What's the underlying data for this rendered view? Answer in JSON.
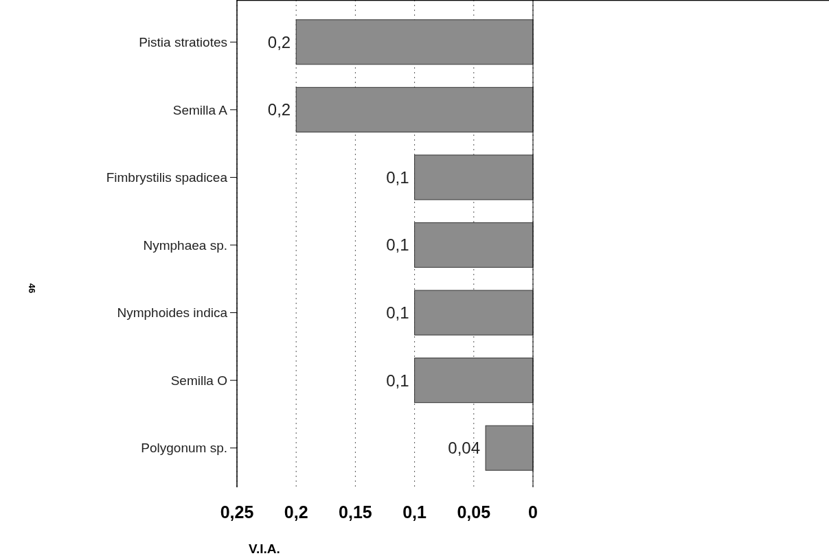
{
  "chart_data": {
    "type": "bar",
    "orientation": "horizontal",
    "xlabel": "V.I.A.",
    "categories": [
      "Pistia stratiotes",
      "Semilla A",
      "Fimbrystilis spadicea",
      "Nymphaea sp.",
      "Nymphoides indica",
      "Semilla O",
      "Polygonum sp."
    ],
    "values": [
      0.2,
      0.2,
      0.1,
      0.1,
      0.1,
      0.1,
      0.04
    ],
    "value_labels": [
      "0,2",
      "0,2",
      "0,1",
      "0,1",
      "0,1",
      "0,1",
      "0,04"
    ],
    "color": "#8c8c8c",
    "xlim": [
      0.25,
      -0.25
    ],
    "xticks": [
      {
        "value": 0.25,
        "label": "0,25"
      },
      {
        "value": 0.2,
        "label": "0,2"
      },
      {
        "value": 0.15,
        "label": "0,15"
      },
      {
        "value": 0.1,
        "label": "0,1"
      },
      {
        "value": 0.05,
        "label": "0,05"
      },
      0
    ],
    "grid": "x",
    "annotations": [
      "46"
    ]
  }
}
